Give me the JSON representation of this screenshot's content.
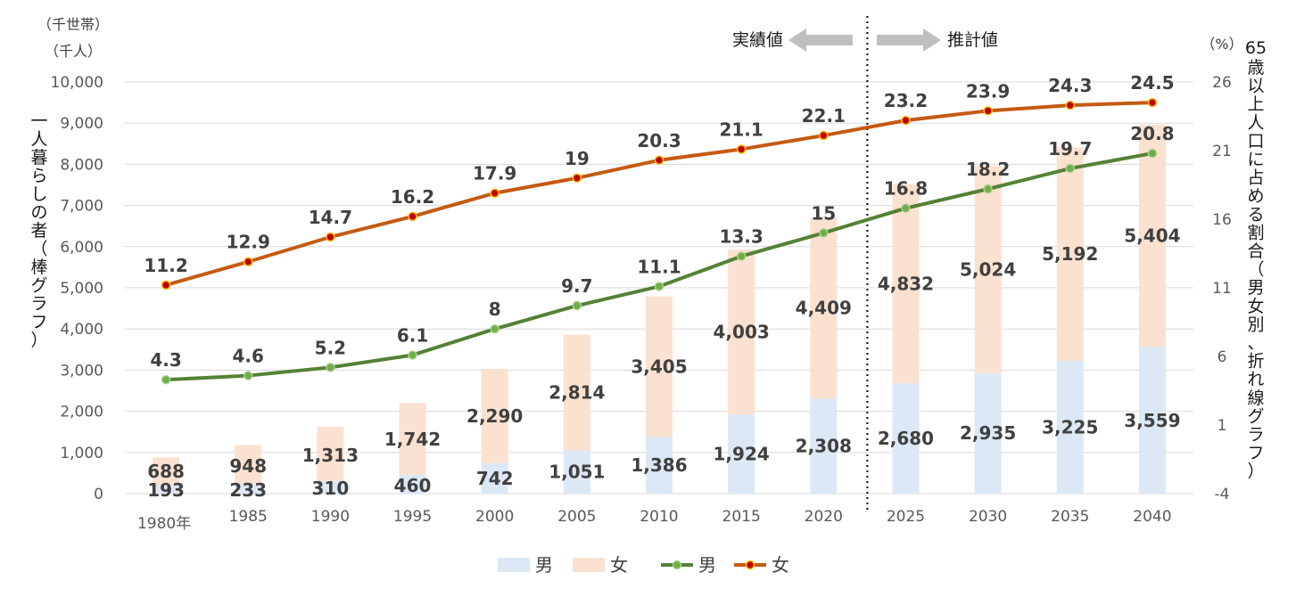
{
  "chart_data": {
    "type": "bar",
    "categories": [
      "1980年",
      "1985",
      "1990",
      "1995",
      "2000",
      "2005",
      "2010",
      "2015",
      "2020",
      "2025",
      "2030",
      "2035",
      "2040"
    ],
    "bar_series": [
      {
        "name": "男",
        "color": "#dce8f5",
        "values": [
          193,
          233,
          310,
          460,
          742,
          1051,
          1386,
          1924,
          2308,
          2680,
          2935,
          3225,
          3559
        ]
      },
      {
        "name": "女",
        "color": "#fbe1d0",
        "values": [
          688,
          948,
          1313,
          1742,
          2290,
          2814,
          3405,
          4003,
          4409,
          4832,
          5024,
          5192,
          5404
        ]
      }
    ],
    "line_series": [
      {
        "name": "男",
        "color": "#548235",
        "marker_fill": "#70ad47",
        "values": [
          4.3,
          4.6,
          5.2,
          6.1,
          8,
          9.7,
          11.1,
          13.3,
          15,
          16.8,
          18.2,
          19.7,
          20.8
        ]
      },
      {
        "name": "女",
        "color": "#c55a11",
        "marker_fill": "#c00000",
        "marker_edge": "#ffc000",
        "values": [
          11.2,
          12.9,
          14.7,
          16.2,
          17.9,
          19,
          20.3,
          21.1,
          22.1,
          23.2,
          23.9,
          24.3,
          24.5
        ]
      }
    ],
    "bar_labels": {
      "male": [
        "193",
        "233",
        "310",
        "460",
        "742",
        "1,051",
        "1,386",
        "1,924",
        "2,308",
        "2,680",
        "2,935",
        "3,225",
        "3,559"
      ],
      "female": [
        "688",
        "948",
        "1,313",
        "1,742",
        "2,290",
        "2,814",
        "3,405",
        "4,003",
        "4,409",
        "4,832",
        "5,024",
        "5,192",
        "5,404"
      ]
    },
    "line_labels": {
      "male": [
        "4.3",
        "4.6",
        "5.2",
        "6.1",
        "8",
        "9.7",
        "11.1",
        "13.3",
        "15",
        "16.8",
        "18.2",
        "19.7",
        "20.8"
      ],
      "female": [
        "11.2",
        "12.9",
        "14.7",
        "16.2",
        "17.9",
        "19",
        "20.3",
        "21.1",
        "22.1",
        "23.2",
        "23.9",
        "24.3",
        "24.5"
      ]
    },
    "y_left": {
      "ylim": [
        0,
        10000
      ],
      "ticks": [
        "0",
        "1,000",
        "2,000",
        "3,000",
        "4,000",
        "5,000",
        "6,000",
        "7,000",
        "8,000",
        "9,000",
        "10,000"
      ],
      "unit_top": "（千世帯）",
      "unit_bottom": "（千人）",
      "label": "一人暮らしの者（棒グラフ）"
    },
    "y_right": {
      "ylim": [
        -4,
        26
      ],
      "ticks": [
        "-4",
        "1",
        "6",
        "11",
        "16",
        "21",
        "26"
      ],
      "unit": "（%）",
      "label": "65歳以上人口に占める割合（男女別、折れ線グラフ）"
    },
    "annotations": {
      "actual": "実績値",
      "projected": "推計値",
      "divider_after_index": 8
    },
    "grid": true,
    "legend": {
      "position": "bottom",
      "items": [
        {
          "label": "男",
          "kind": "bar"
        },
        {
          "label": "女",
          "kind": "bar"
        },
        {
          "label": "男",
          "kind": "line"
        },
        {
          "label": "女",
          "kind": "line"
        }
      ]
    }
  }
}
